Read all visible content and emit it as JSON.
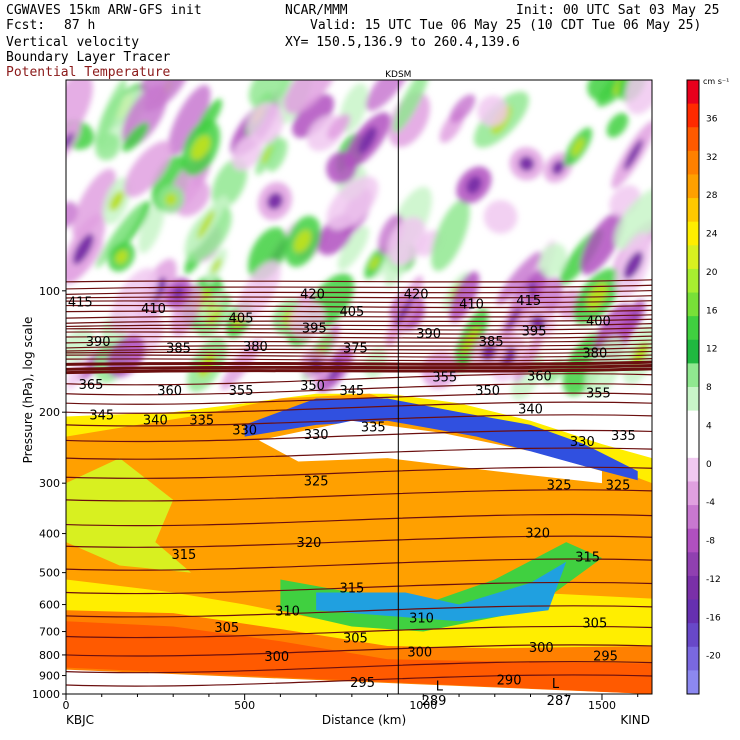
{
  "header": {
    "model": "CGWAVES 15km ARW-GFS init",
    "fcst_label": "Fcst:",
    "fcst_value": "87 h",
    "field1": "Vertical velocity",
    "field2": "Boundary Layer Tracer",
    "field3": "Potential Temperature",
    "org": "NCAR/MMM",
    "init": "Init: 00 UTC Sat 03 May 25",
    "valid": "Valid: 15 UTC Tue 06 May 25 (10 CDT Tue 06 May 25)",
    "xy": "XY= 150.5,136.9 to 260.4,139.6"
  },
  "chart_data": {
    "type": "heatmap",
    "title": "",
    "xlabel": "Distance (km)",
    "ylabel": "Pressure (hPa), log scale",
    "xlim": [
      0,
      1640
    ],
    "ylim": [
      1000,
      30
    ],
    "x_ticks": [
      0,
      500,
      1000,
      1500
    ],
    "y_ticks": [
      100,
      200,
      300,
      400,
      500,
      600,
      700,
      800,
      900,
      1000
    ],
    "y_scale": "log",
    "left_station": "KBJC",
    "right_station": "KIND",
    "marker": {
      "label": "KDSM",
      "x_km": 930
    },
    "colorbar": {
      "units": "cm s⁻¹",
      "tick_labels": [
        36,
        32,
        28,
        24,
        20,
        16,
        12,
        8,
        4,
        0,
        -4,
        -8,
        -12,
        -16,
        -20
      ],
      "colors": [
        "#e8001c",
        "#ff2a00",
        "#ff5a00",
        "#ff8000",
        "#ffa000",
        "#ffc800",
        "#ffee00",
        "#d8f020",
        "#a8ee30",
        "#78e038",
        "#40d040",
        "#20b840",
        "#90e890",
        "#c8f5c8",
        "#ffffff",
        "#ffffff",
        "#f0c8f0",
        "#e0a0e0",
        "#c878d0",
        "#b050c0",
        "#9040b0",
        "#7a30a8",
        "#6630b0",
        "#6848c8",
        "#7a68e0",
        "#8c88f0"
      ]
    },
    "theta_labels": [
      {
        "v": "415",
        "x": 40,
        "p": 107
      },
      {
        "v": "410",
        "x": 245,
        "p": 111
      },
      {
        "v": "420",
        "x": 690,
        "p": 102
      },
      {
        "v": "405",
        "x": 490,
        "p": 117
      },
      {
        "v": "405",
        "x": 800,
        "p": 113
      },
      {
        "v": "395",
        "x": 695,
        "p": 124
      },
      {
        "v": "420",
        "x": 980,
        "p": 102
      },
      {
        "v": "410",
        "x": 1135,
        "p": 108
      },
      {
        "v": "415",
        "x": 1295,
        "p": 106
      },
      {
        "v": "400",
        "x": 1490,
        "p": 119
      },
      {
        "v": "395",
        "x": 1310,
        "p": 126
      },
      {
        "v": "390",
        "x": 90,
        "p": 134
      },
      {
        "v": "385",
        "x": 315,
        "p": 139
      },
      {
        "v": "380",
        "x": 530,
        "p": 138
      },
      {
        "v": "375",
        "x": 810,
        "p": 139
      },
      {
        "v": "390",
        "x": 1015,
        "p": 128
      },
      {
        "v": "385",
        "x": 1190,
        "p": 134
      },
      {
        "v": "380",
        "x": 1480,
        "p": 143
      },
      {
        "v": "365",
        "x": 70,
        "p": 171
      },
      {
        "v": "360",
        "x": 290,
        "p": 177
      },
      {
        "v": "355",
        "x": 490,
        "p": 177
      },
      {
        "v": "350",
        "x": 690,
        "p": 172
      },
      {
        "v": "345",
        "x": 800,
        "p": 177
      },
      {
        "v": "355",
        "x": 1060,
        "p": 164
      },
      {
        "v": "350",
        "x": 1180,
        "p": 177
      },
      {
        "v": "360",
        "x": 1325,
        "p": 163
      },
      {
        "v": "355",
        "x": 1490,
        "p": 180
      },
      {
        "v": "345",
        "x": 100,
        "p": 204
      },
      {
        "v": "340",
        "x": 250,
        "p": 210
      },
      {
        "v": "335",
        "x": 380,
        "p": 210
      },
      {
        "v": "330",
        "x": 500,
        "p": 222
      },
      {
        "v": "330",
        "x": 700,
        "p": 228
      },
      {
        "v": "335",
        "x": 860,
        "p": 218
      },
      {
        "v": "340",
        "x": 1300,
        "p": 197
      },
      {
        "v": "330",
        "x": 1445,
        "p": 237
      },
      {
        "v": "335",
        "x": 1560,
        "p": 229
      },
      {
        "v": "325",
        "x": 700,
        "p": 297
      },
      {
        "v": "325",
        "x": 1380,
        "p": 304
      },
      {
        "v": "325",
        "x": 1545,
        "p": 304
      },
      {
        "v": "315",
        "x": 330,
        "p": 452
      },
      {
        "v": "320",
        "x": 680,
        "p": 422
      },
      {
        "v": "320",
        "x": 1320,
        "p": 400
      },
      {
        "v": "315",
        "x": 1460,
        "p": 458
      },
      {
        "v": "315",
        "x": 800,
        "p": 548
      },
      {
        "v": "310",
        "x": 620,
        "p": 624
      },
      {
        "v": "310",
        "x": 995,
        "p": 650
      },
      {
        "v": "305",
        "x": 450,
        "p": 686
      },
      {
        "v": "305",
        "x": 810,
        "p": 728
      },
      {
        "v": "305",
        "x": 1480,
        "p": 668
      },
      {
        "v": "300",
        "x": 590,
        "p": 810
      },
      {
        "v": "300",
        "x": 990,
        "p": 790
      },
      {
        "v": "300",
        "x": 1330,
        "p": 770
      },
      {
        "v": "295",
        "x": 1510,
        "p": 808
      },
      {
        "v": "295",
        "x": 830,
        "p": 940
      },
      {
        "v": "290",
        "x": 1240,
        "p": 925
      },
      {
        "v": "289",
        "x": 1030,
        "p": 1040
      },
      {
        "v": "287",
        "x": 1380,
        "p": 1040
      }
    ],
    "low_markers": [
      {
        "v": "L",
        "x": 1045,
        "p": 958
      },
      {
        "v": "L",
        "x": 1370,
        "p": 945
      }
    ]
  }
}
